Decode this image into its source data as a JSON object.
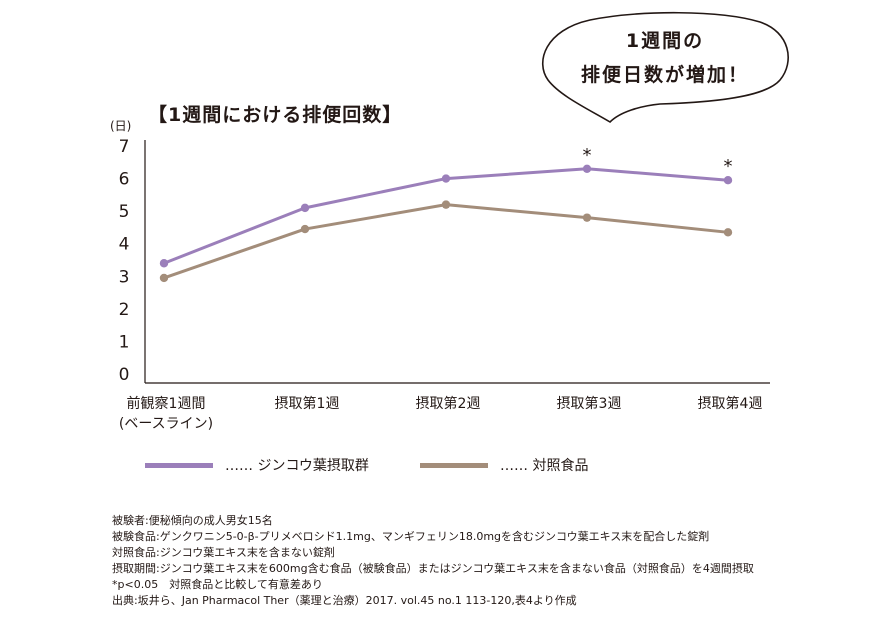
{
  "callout": {
    "line1": "1週間の",
    "line2": "排便日数が増加！"
  },
  "chart_data": {
    "type": "line",
    "title": "【1週間における排便回数】",
    "ylabel": "(日)",
    "ylim": [
      0,
      7
    ],
    "yticks": [
      0,
      1,
      2,
      3,
      4,
      5,
      6,
      7
    ],
    "categories": [
      "前観察1週間\n(ベースライン)",
      "摂取第1週",
      "摂取第2週",
      "摂取第3週",
      "摂取第4週"
    ],
    "series": [
      {
        "name": "ジンコウ葉摂取群",
        "color": "#9b7fba",
        "values": [
          3.4,
          5.1,
          6.0,
          6.3,
          5.95
        ],
        "significant": [
          false,
          false,
          false,
          true,
          true
        ]
      },
      {
        "name": "対照食品",
        "color": "#a38d7a",
        "values": [
          2.95,
          4.45,
          5.2,
          4.8,
          4.35
        ],
        "significant": [
          false,
          false,
          false,
          false,
          false
        ]
      }
    ],
    "significance_marker": "*",
    "legend": [
      {
        "label": "…… ジンコウ葉摂取群",
        "color": "#9b7fba"
      },
      {
        "label": "…… 対照食品",
        "color": "#a38d7a"
      }
    ],
    "legend_position": "bottom",
    "grid": false
  },
  "notes": [
    "被験者:便秘傾向の成人男女15名",
    "被験食品:ゲンクワニン5-0-β-プリメベロシド1.1mg、マンギフェリン18.0mgを含むジンコウ葉エキス末を配合した錠剤",
    "対照食品:ジンコウ葉エキス末を含まない錠剤",
    "摂取期間:ジンコウ葉エキス末を600mg含む食品（被験食品）またはジンコウ葉エキス末を含まない食品（対照食品）を4週間摂取",
    "*p<0.05　対照食品と比較して有意差あり",
    "出典:坂井ら、Jan Pharmacol Ther（薬理と治療）2017. vol.45 no.1 113-120,表4より作成"
  ]
}
